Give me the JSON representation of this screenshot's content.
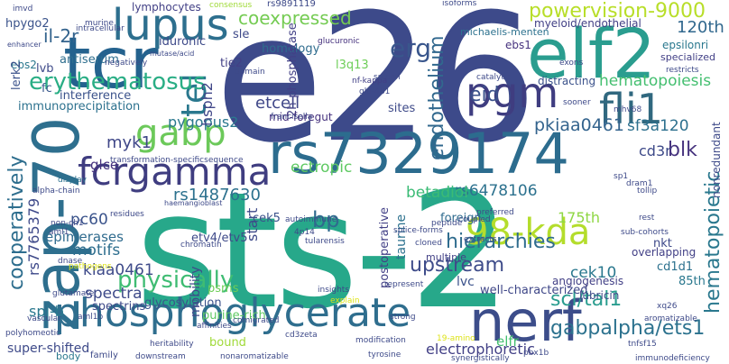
{
  "words": [
    {
      "text": "e26",
      "color": "#3d4a8a"
    },
    {
      "text": "sts-2",
      "color": "#27a88a"
    },
    {
      "text": "tcr",
      "color": "#24628e"
    },
    {
      "text": "zap-70",
      "color": "#2e6f8e"
    },
    {
      "text": "rs7329174",
      "color": "#2c6c8e"
    },
    {
      "text": "elf2",
      "color": "#2a9d8f"
    },
    {
      "text": "nerf",
      "color": "#3c4d8a"
    },
    {
      "text": "phosphoglycerate",
      "color": "#2f6e8e"
    },
    {
      "text": "lupus",
      "color": "#2d6f8e"
    },
    {
      "text": "pgm",
      "color": "#3f3d80"
    },
    {
      "text": "fli1",
      "color": "#30687f"
    },
    {
      "text": "fcrgamma",
      "color": "#3f3d80"
    },
    {
      "text": "98-kda",
      "color": "#b4dd2c"
    },
    {
      "text": "gabp",
      "color": "#6cc95a"
    },
    {
      "text": "tel",
      "color": "#2a788e"
    },
    {
      "text": "erythematosus",
      "color": "#2aae85"
    },
    {
      "text": "powervision-9000",
      "color": "#b8de29"
    },
    {
      "text": "coexpressed",
      "color": "#74cb52"
    },
    {
      "text": "il-2r",
      "color": "#33638d"
    },
    {
      "text": "hpygo2",
      "color": "#3a538b"
    },
    {
      "text": "hematopoiesis",
      "color": "#44bf70"
    },
    {
      "text": "endothelium",
      "color": "#31688e"
    },
    {
      "text": "hematopoietic",
      "color": "#2a788e"
    },
    {
      "text": "pkiaa0461",
      "color": "#33638d"
    },
    {
      "text": "sf3a120",
      "color": "#2d708e"
    },
    {
      "text": "blk",
      "color": "#46337e"
    },
    {
      "text": "cd3r",
      "color": "#3e4a89"
    },
    {
      "text": "erg",
      "color": "#39568c"
    },
    {
      "text": "eid",
      "color": "#3b528b"
    },
    {
      "text": "120th",
      "color": "#31688e"
    },
    {
      "text": "myeloid/endothelial",
      "color": "#424086"
    },
    {
      "text": "cooperatively",
      "color": "#2e6e8e"
    },
    {
      "text": "rs7765379",
      "color": "#3e4989"
    },
    {
      "text": "myk1",
      "color": "#3f4788"
    },
    {
      "text": "gabpalpha/ets1",
      "color": "#2c728e"
    },
    {
      "text": "scl/tal1",
      "color": "#2a9d8f"
    },
    {
      "text": "hierarchies",
      "color": "#2f6c8e"
    },
    {
      "text": "upstream",
      "color": "#3e4c8a"
    },
    {
      "text": "physically",
      "color": "#3fbc73"
    },
    {
      "text": "bp",
      "color": "#2f6b8e"
    },
    {
      "text": "rs1487630",
      "color": "#2c718e"
    },
    {
      "text": "pygopus2",
      "color": "#2a788e"
    },
    {
      "text": "hsph2",
      "color": "#404688"
    },
    {
      "text": "etcell",
      "color": "#3f4788"
    },
    {
      "text": "rs6478106",
      "color": "#2c718e"
    },
    {
      "text": "betadiol",
      "color": "#3bbb75"
    },
    {
      "text": "ectropic",
      "color": "#5ec962"
    },
    {
      "text": "cek10",
      "color": "#2a788e"
    },
    {
      "text": "lupus2",
      "color": "#2a788e"
    },
    {
      "text": "spectra",
      "color": "#3e4a89"
    },
    {
      "text": "kiaa0461",
      "color": "#3e4a89"
    },
    {
      "text": "spi-b",
      "color": "#2a788e"
    },
    {
      "text": "pc60",
      "color": "#3a538b"
    },
    {
      "text": "motifs",
      "color": "#2e6e8e"
    },
    {
      "text": "epimerases",
      "color": "#2f6b8e"
    },
    {
      "text": "glce",
      "color": "#46327e"
    },
    {
      "text": "start",
      "color": "#3e4989"
    },
    {
      "text": "lymphocytes",
      "color": "#424086"
    },
    {
      "text": "iduronic",
      "color": "#3e4a89"
    },
    {
      "text": "homology",
      "color": "#2f6c8e"
    },
    {
      "text": "antiserum",
      "color": "#2e6e8e"
    },
    {
      "text": "interference",
      "color": "#3b528b"
    },
    {
      "text": "immunoprecipitation",
      "color": "#2c718e"
    },
    {
      "text": "fc",
      "color": "#38588c"
    },
    {
      "text": "lvb",
      "color": "#3e4a89"
    },
    {
      "text": "ebs2",
      "color": "#2a788e"
    },
    {
      "text": "lerk2",
      "color": "#3b528b"
    },
    {
      "text": "sle",
      "color": "#3e4989"
    },
    {
      "text": "tie2",
      "color": "#424086"
    },
    {
      "text": "l3q13",
      "color": "#6ece58"
    },
    {
      "text": "2h-phosphatase",
      "color": "#424086"
    },
    {
      "text": "sites",
      "color": "#3e4a89"
    },
    {
      "text": "mid-foregut",
      "color": "#46327e"
    },
    {
      "text": "nonredundant",
      "color": "#3e4a89"
    },
    {
      "text": "175th",
      "color": "#8fd744"
    },
    {
      "text": "foreign",
      "color": "#2f6b8e"
    },
    {
      "text": "85th",
      "color": "#2a788e"
    },
    {
      "text": "cd1d1",
      "color": "#2c718e"
    },
    {
      "text": "lubricin",
      "color": "#3e4a89"
    },
    {
      "text": "angiogenesis",
      "color": "#424086"
    },
    {
      "text": "well-characterized",
      "color": "#3f4788"
    },
    {
      "text": "lvc",
      "color": "#3b528b"
    },
    {
      "text": "electrophoretic",
      "color": "#424086"
    },
    {
      "text": "elfr",
      "color": "#44bf70"
    },
    {
      "text": "super-shifted",
      "color": "#3e4a89"
    },
    {
      "text": "spectrins",
      "color": "#3e4989"
    },
    {
      "text": "glycosylation",
      "color": "#3b528b"
    },
    {
      "text": "mobility",
      "color": "#3e4a89"
    },
    {
      "text": "purine-rich",
      "color": "#5ec962"
    },
    {
      "text": "psms",
      "color": "#6ece58"
    },
    {
      "text": "bound",
      "color": "#a0da39"
    },
    {
      "text": "etv4/etv5",
      "color": "#3e4a89"
    },
    {
      "text": "cek5",
      "color": "#3b528b"
    },
    {
      "text": "postoperative",
      "color": "#424086"
    },
    {
      "text": "taurine",
      "color": "#2c718e"
    },
    {
      "text": "nkt",
      "color": "#3e4989"
    },
    {
      "text": "ebs1",
      "color": "#46327e"
    },
    {
      "text": "epsilonri",
      "color": "#2a788e"
    },
    {
      "text": "specialized",
      "color": "#424086"
    },
    {
      "text": "distracting",
      "color": "#3b528b"
    },
    {
      "text": "michaelis-menten",
      "color": "#2c718e"
    },
    {
      "text": "multiple",
      "color": "#424086"
    },
    {
      "text": "overlapping",
      "color": "#424086"
    },
    {
      "text": "family",
      "color": "#3e4a89"
    },
    {
      "text": "body",
      "color": "#2a788e"
    },
    {
      "text": "nf-kappa",
      "color": "#424086"
    },
    {
      "text": "glu-481",
      "color": "#3e4989"
    },
    {
      "text": "francisella",
      "color": "#3e4989"
    },
    {
      "text": "glucuronic",
      "color": "#46327e"
    },
    {
      "text": "murine",
      "color": "#3e4a89"
    },
    {
      "text": "consensus",
      "color": "#a0da39"
    },
    {
      "text": "rs9891119",
      "color": "#3e4a89"
    },
    {
      "text": "isoforms",
      "color": "#3e4a89"
    },
    {
      "text": "imvd",
      "color": "#3e4a89"
    },
    {
      "text": "enhancer",
      "color": "#3e4a89"
    },
    {
      "text": "mutase/acid",
      "color": "#3e4a89"
    },
    {
      "text": "transformation-specificsequence",
      "color": "#3e4a89"
    },
    {
      "text": "alpha-chain",
      "color": "#3e4a89"
    },
    {
      "text": "haemangioblast",
      "color": "#3e4a89"
    },
    {
      "text": "display",
      "color": "#2c718e"
    },
    {
      "text": "chromatin",
      "color": "#3e4a89"
    },
    {
      "text": "autoimmune",
      "color": "#3e4a89"
    },
    {
      "text": "4p14",
      "color": "#3e4a89"
    },
    {
      "text": "tularensis",
      "color": "#3e4a89"
    },
    {
      "text": "cloned",
      "color": "#3e4a89"
    },
    {
      "text": "peptide",
      "color": "#3e4a89"
    },
    {
      "text": "splice-forms",
      "color": "#3e4a89"
    },
    {
      "text": "extracts",
      "color": "#3e4a89"
    },
    {
      "text": "sub-cohorts",
      "color": "#3e4a89"
    },
    {
      "text": "rest",
      "color": "#3e4a89"
    },
    {
      "text": "insights",
      "color": "#3e4a89"
    },
    {
      "text": "strong",
      "color": "#3e4a89"
    },
    {
      "text": "represent",
      "color": "#3e4a89"
    },
    {
      "text": "explain",
      "color": "#dde318"
    },
    {
      "text": "glutamate",
      "color": "#3e4a89"
    },
    {
      "text": "comigrated",
      "color": "#3e4a89"
    },
    {
      "text": "affinities",
      "color": "#3e4a89"
    },
    {
      "text": "cd3zeta",
      "color": "#3e4a89"
    },
    {
      "text": "modification",
      "color": "#3e4a89"
    },
    {
      "text": "19-amino",
      "color": "#dde318"
    },
    {
      "text": "tnfsf15",
      "color": "#3e4a89"
    },
    {
      "text": "aromatizable",
      "color": "#3e4a89"
    },
    {
      "text": "xq26",
      "color": "#3e4a89"
    },
    {
      "text": "heritability",
      "color": "#3e4a89"
    },
    {
      "text": "downstream",
      "color": "#3e4a89"
    },
    {
      "text": "nonaromatizable",
      "color": "#3e4a89"
    },
    {
      "text": "tyrosine",
      "color": "#3e4a89"
    },
    {
      "text": "synergistically",
      "color": "#3e4a89"
    },
    {
      "text": "pbx1b",
      "color": "#3e4a89"
    },
    {
      "text": "immunodeficiency",
      "color": "#3e4a89"
    },
    {
      "text": "polyhomeotic",
      "color": "#3e4a89"
    },
    {
      "text": "vascular",
      "color": "#3e4a89"
    },
    {
      "text": "aml1b",
      "color": "#3e4a89"
    },
    {
      "text": "pathogens",
      "color": "#dde318"
    },
    {
      "text": "dnase",
      "color": "#3e4a89"
    },
    {
      "text": "aml1",
      "color": "#3e4a89"
    },
    {
      "text": "non-ch1",
      "color": "#3e4a89"
    },
    {
      "text": "residues",
      "color": "#3e4a89"
    },
    {
      "text": "domain",
      "color": "#3e4a89"
    },
    {
      "text": "catalytic",
      "color": "#3e4a89"
    },
    {
      "text": "preferred",
      "color": "#3e4a89"
    },
    {
      "text": "coupled",
      "color": "#3e4a89"
    },
    {
      "text": "sp1",
      "color": "#3e4a89"
    },
    {
      "text": "dram1",
      "color": "#3e4a89"
    },
    {
      "text": "tollip",
      "color": "#3e4a89"
    },
    {
      "text": "mhv68",
      "color": "#3e4a89"
    },
    {
      "text": "sooner",
      "color": "#3e4a89"
    },
    {
      "text": "exons",
      "color": "#3e4a89"
    },
    {
      "text": "restricts",
      "color": "#3e4a89"
    },
    {
      "text": "negatively",
      "color": "#3e4a89"
    },
    {
      "text": "spleen",
      "color": "#3e4a89"
    },
    {
      "text": "intracellular",
      "color": "#3e4a89"
    },
    {
      "text": "pygopus",
      "color": "#3e4a89"
    }
  ]
}
